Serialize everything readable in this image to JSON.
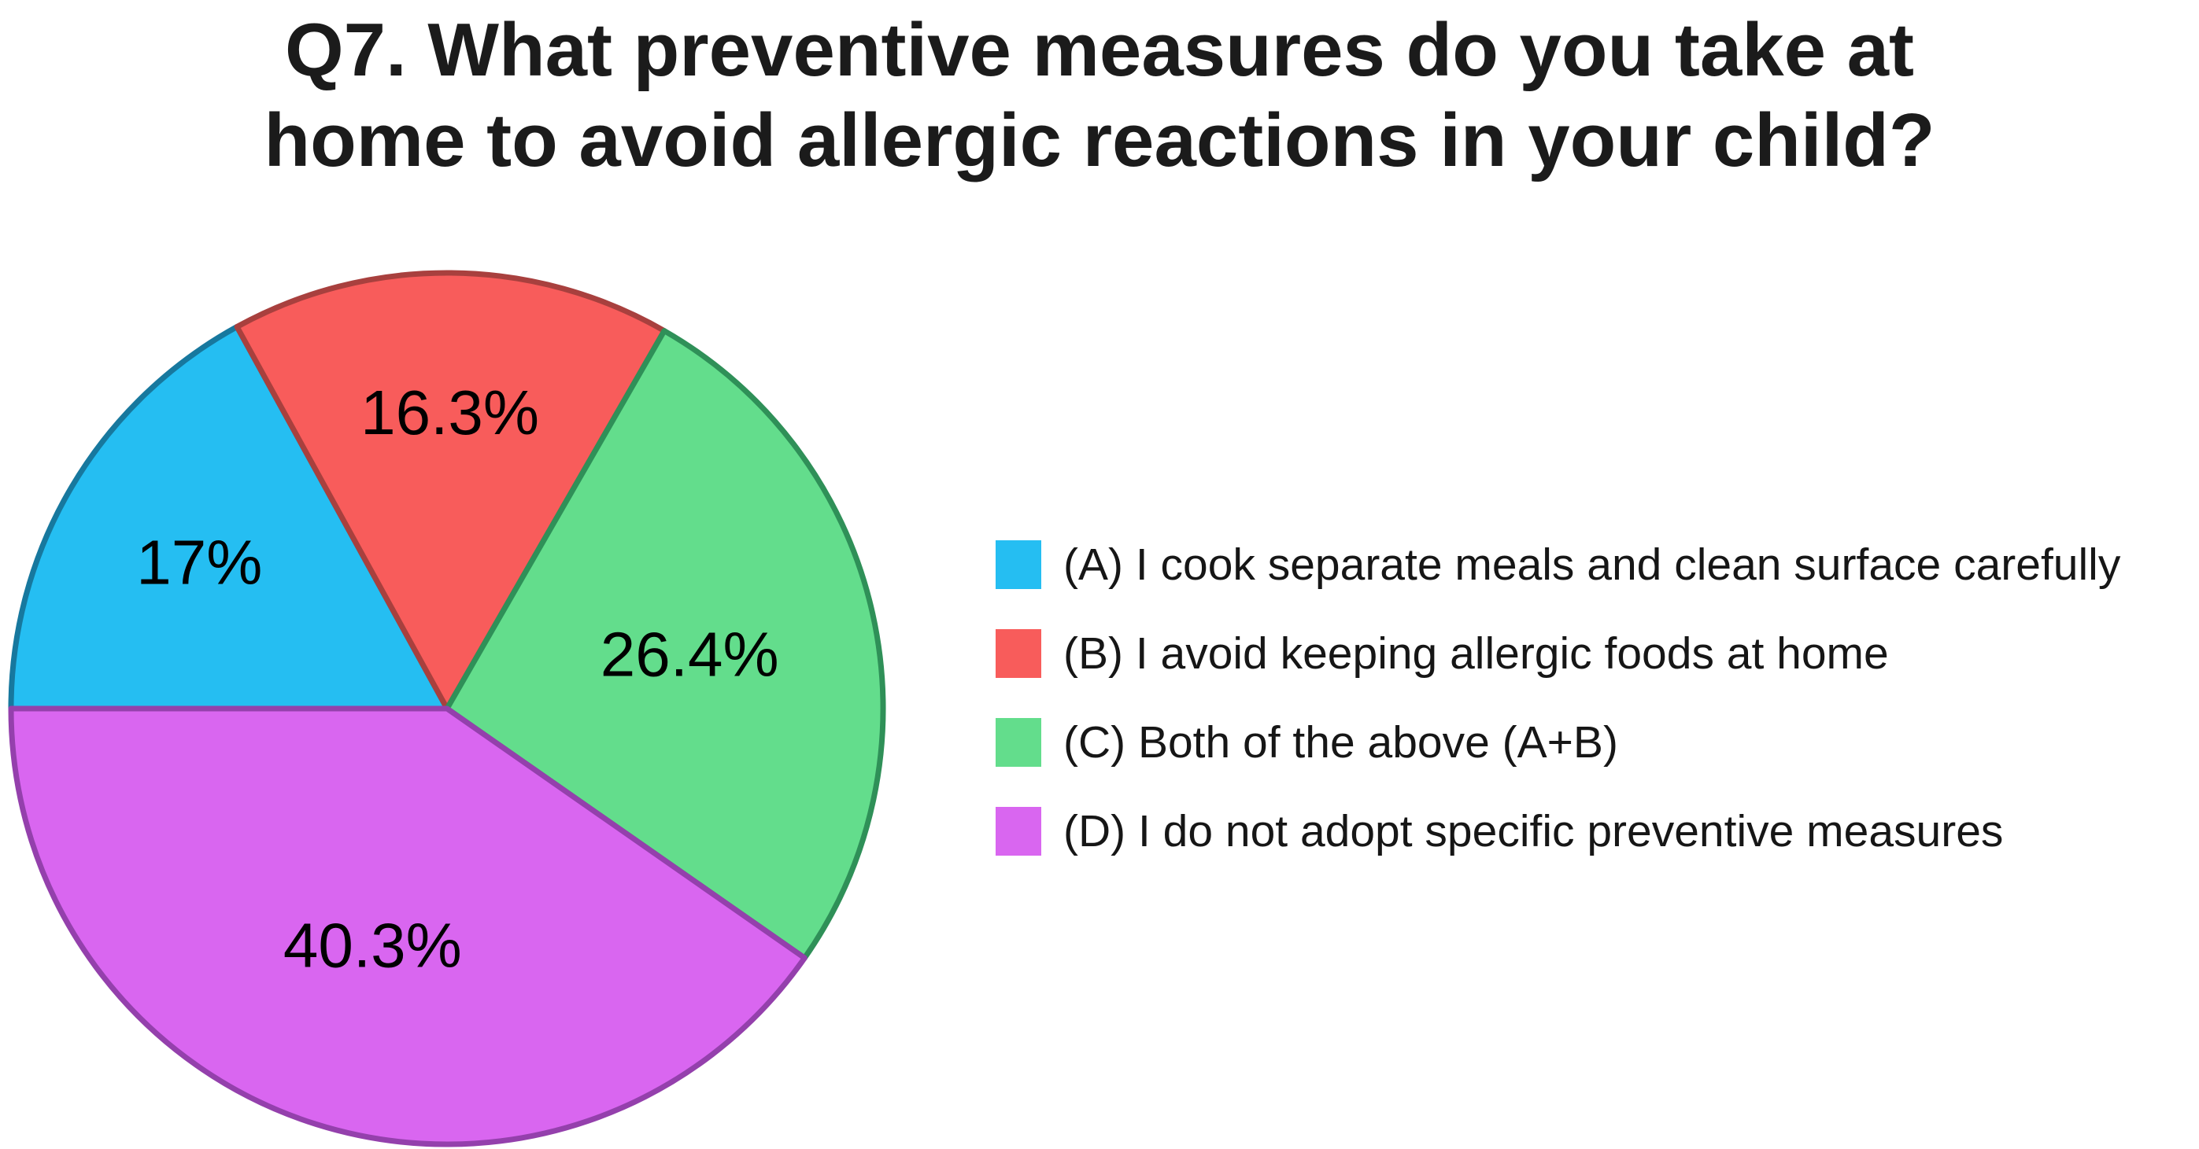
{
  "title": {
    "line1": "Q7. What preventive measures do you take at",
    "line2": "home to avoid allergic reactions in your child?"
  },
  "chart_data": {
    "type": "pie",
    "title": "Q7. What preventive measures do you take at home to avoid allergic reactions in your child?",
    "legend_position": "right",
    "labels_inside": true,
    "start_angle_deg": 180,
    "direction": "clockwise",
    "slices": [
      {
        "id": "A",
        "label": "(A) I cook separate meals and clean surface carefully",
        "value": 17.0,
        "display": "17%",
        "color": "#25BEF2",
        "border": "#17789E"
      },
      {
        "id": "B",
        "label": "(B) I avoid keeping allergic foods at home",
        "value": 16.3,
        "display": "16.3%",
        "color": "#F85C5B",
        "border": "#A8403E"
      },
      {
        "id": "C",
        "label": "(C) Both of the above (A+B)",
        "value": 26.4,
        "display": "26.4%",
        "color": "#63DD8C",
        "border": "#2F9058"
      },
      {
        "id": "D",
        "label": "(D) I do not adopt specific preventive measures",
        "value": 40.3,
        "display": "40.3%",
        "color": "#D966F0",
        "border": "#9440AC"
      }
    ]
  }
}
